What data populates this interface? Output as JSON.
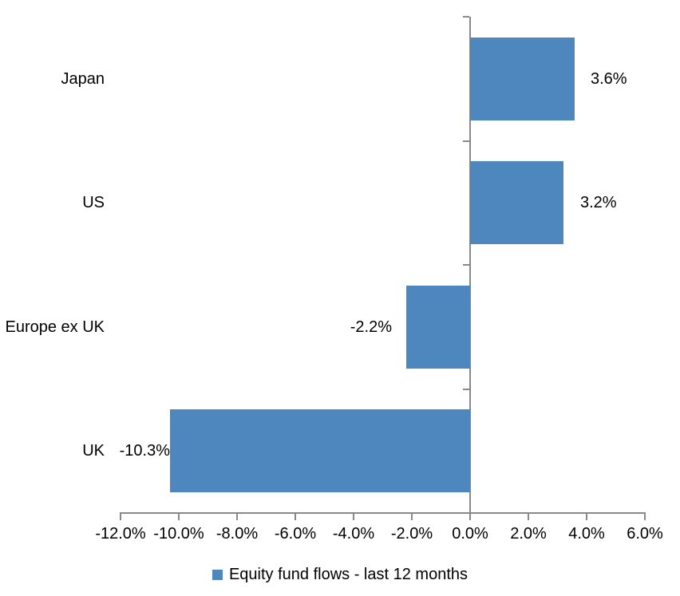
{
  "chart_data": {
    "type": "bar",
    "orientation": "horizontal",
    "title": "",
    "xlabel": "",
    "ylabel": "",
    "categories": [
      "Japan",
      "US",
      "Europe ex UK",
      "UK"
    ],
    "series": [
      {
        "name": "Equity fund flows - last 12 months",
        "values": [
          3.6,
          3.2,
          -2.2,
          -10.3
        ],
        "data_labels": [
          "3.6%",
          "3.2%",
          "-2.2%",
          "-10.3%"
        ]
      }
    ],
    "xlim": [
      -12,
      6
    ],
    "x_tick_step": 2,
    "x_tick_labels": [
      "-12.0%",
      "-10.0%",
      "-8.0%",
      "-6.0%",
      "-4.0%",
      "-2.0%",
      "0.0%",
      "2.0%",
      "4.0%",
      "6.0%"
    ],
    "grid": false,
    "legend_position": "bottom",
    "legend": "Equity fund flows - last 12 months",
    "colors": {
      "bar": "#4E86BE",
      "axis": "#898989",
      "text": "#000000",
      "background": "#FFFFFF"
    }
  }
}
